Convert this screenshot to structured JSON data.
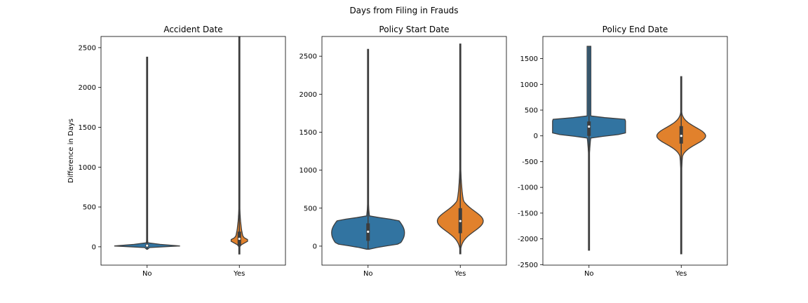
{
  "figure_title": "Days from Filing in Frauds",
  "colors": {
    "no": "#3274a1",
    "yes": "#e1812c",
    "edge": "#3d3d3d"
  },
  "chart_data": [
    {
      "type": "violin",
      "title": "Accident Date",
      "ylabel": "Difference in Days",
      "xlabel": "",
      "categories": [
        "No",
        "Yes"
      ],
      "yticks": [
        0,
        500,
        1000,
        1500,
        2000,
        2500
      ],
      "ylim": [
        -230,
        2640
      ],
      "grid": false,
      "violins": [
        {
          "category": "No",
          "min": -30,
          "q1": 0,
          "median": 15,
          "q3": 30,
          "max": 2380,
          "peak": 15,
          "tail_start": 130
        },
        {
          "category": "Yes",
          "min": -90,
          "q1": 15,
          "median": 100,
          "q3": 190,
          "max": 2635,
          "peak": 80,
          "tail_start": 700
        }
      ]
    },
    {
      "type": "violin",
      "title": "Policy Start Date",
      "ylabel": "",
      "xlabel": "",
      "categories": [
        "No",
        "Yes"
      ],
      "yticks": [
        0,
        500,
        1000,
        1500,
        2000,
        2500
      ],
      "ylim": [
        -250,
        2760
      ],
      "grid": false,
      "violins": [
        {
          "category": "No",
          "min": -40,
          "q1": 70,
          "median": 190,
          "q3": 300,
          "max": 2590,
          "peak": 90,
          "tail_start": 700
        },
        {
          "category": "Yes",
          "min": -100,
          "q1": 170,
          "median": 330,
          "q3": 500,
          "max": 2660,
          "peak": 330,
          "tail_start": 1500
        }
      ]
    },
    {
      "type": "violin",
      "title": "Policy End Date",
      "ylabel": "",
      "xlabel": "",
      "categories": [
        "No",
        "Yes"
      ],
      "yticks": [
        -2500,
        -2000,
        -1500,
        -1000,
        -500,
        0,
        500,
        1000,
        1500
      ],
      "ylim": [
        -2510,
        1930
      ],
      "grid": false,
      "violins": [
        {
          "category": "No",
          "min": -2220,
          "q1": 0,
          "median": 180,
          "q3": 280,
          "max": 1740,
          "peak": 190,
          "tail_start": -800
        },
        {
          "category": "Yes",
          "min": -2290,
          "q1": -150,
          "median": 0,
          "q3": 190,
          "max": 1150,
          "peak": 0,
          "tail_start": -900
        }
      ]
    }
  ]
}
